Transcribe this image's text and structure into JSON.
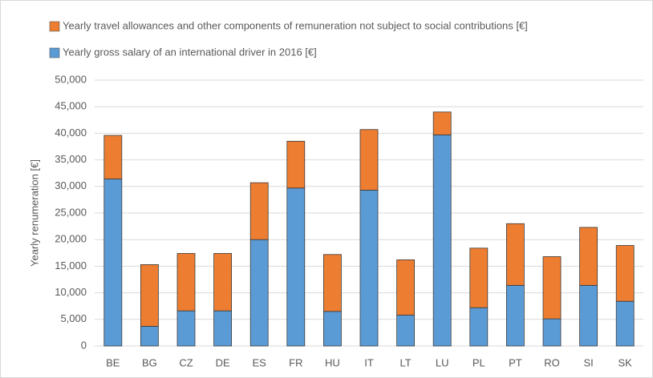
{
  "chart_data": {
    "type": "stacked_bar",
    "ylabel": "Yearly renumeration [€]",
    "categories": [
      "BE",
      "BG",
      "CZ",
      "DE",
      "ES",
      "FR",
      "HU",
      "IT",
      "LT",
      "LU",
      "PL",
      "PT",
      "RO",
      "SI",
      "SK"
    ],
    "series": [
      {
        "name": "Yearly gross salary of an international driver in 2016 [€]",
        "color": "#5b9bd5",
        "values": [
          31400,
          3700,
          6600,
          6600,
          20000,
          29700,
          6500,
          29300,
          5800,
          39700,
          7200,
          11400,
          5100,
          11400,
          8400
        ]
      },
      {
        "name": "Yearly travel allowances and other components of remuneration not subject to social contributions [€]",
        "color": "#ed7d31",
        "values": [
          8200,
          11600,
          10800,
          10800,
          10700,
          8800,
          10700,
          11400,
          10400,
          4300,
          11200,
          11600,
          11700,
          10900,
          10500
        ]
      }
    ],
    "ylim": [
      0,
      50000
    ],
    "yticks": [
      0,
      {
        "value": 5000,
        "label": "5,000"
      },
      {
        "value": 10000,
        "label": "10,000"
      },
      {
        "value": 15000,
        "label": "15,000"
      },
      {
        "value": 20000,
        "label": "20,000"
      },
      {
        "value": 25000,
        "label": "25,000"
      },
      {
        "value": 30000,
        "label": "30,000"
      },
      {
        "value": 35000,
        "label": "35,000"
      },
      {
        "value": 40000,
        "label": "40,000"
      },
      {
        "value": 45000,
        "label": "45,000"
      },
      {
        "value": 50000,
        "label": "50,000"
      }
    ],
    "grid": true
  }
}
